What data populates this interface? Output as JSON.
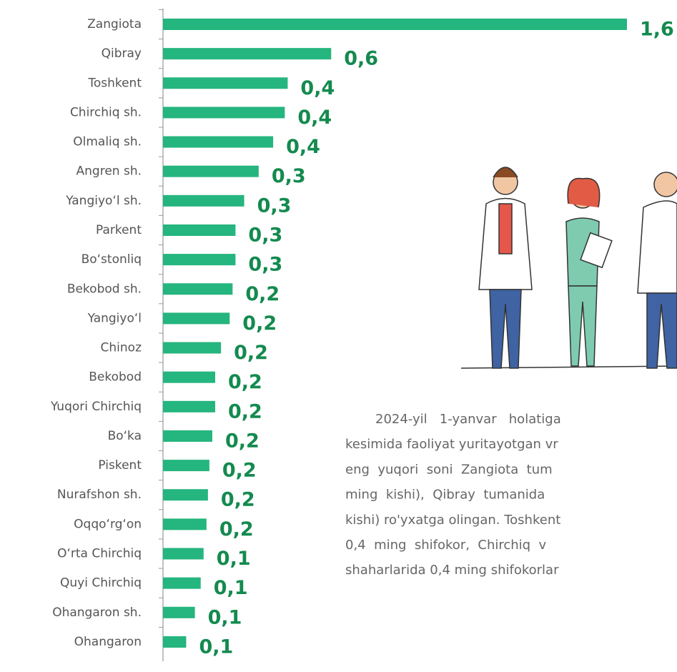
{
  "chart_data": {
    "type": "hbar",
    "categories": [
      "Zangiota",
      "Qibray",
      "Toshkent",
      "Chirchiq sh.",
      "Olmaliq sh.",
      "Angren sh.",
      "Yangiyo‘l sh.",
      "Parkent",
      "Bo‘stonliq",
      "Bekobod sh.",
      "Yangiyo‘l",
      "Chinoz",
      "Bekobod",
      "Yuqori Chirchiq",
      "Bo‘ka",
      "Piskent",
      "Nurafshon sh.",
      "Oqqo‘rg‘on",
      "O‘rta Chirchiq",
      "Quyi Chirchiq",
      "Ohangaron sh.",
      "Ohangaron"
    ],
    "values": [
      1.6,
      0.58,
      0.43,
      0.42,
      0.38,
      0.33,
      0.28,
      0.25,
      0.25,
      0.24,
      0.23,
      0.2,
      0.18,
      0.18,
      0.17,
      0.16,
      0.155,
      0.15,
      0.14,
      0.13,
      0.11,
      0.08
    ],
    "value_labels": [
      "1,6",
      "0,6",
      "0,4",
      "0,4",
      "0,4",
      "0,3",
      "0,3",
      "0,3",
      "0,3",
      "0,2",
      "0,2",
      "0,2",
      "0,2",
      "0,2",
      "0,2",
      "0,2",
      "0,2",
      "0,2",
      "0,1",
      "0,1",
      "0,1",
      "0,1"
    ],
    "color": "#25b57e",
    "xlim": [
      0,
      1.6
    ],
    "annotation": [
      "2024-yil   1-yanvar   holatiga",
      "kesimida faoliyat yuritayotgan vr",
      "eng  yuqori  soni  Zangiota  tum",
      "ming  kishi),  Qibray  tumanida",
      "kishi) ro'yxatga olingan. Toshkent",
      "0,4  ming  shifokor,  Chirchiq  v",
      "shaharlarida 0,4 ming shifokorlar"
    ]
  }
}
